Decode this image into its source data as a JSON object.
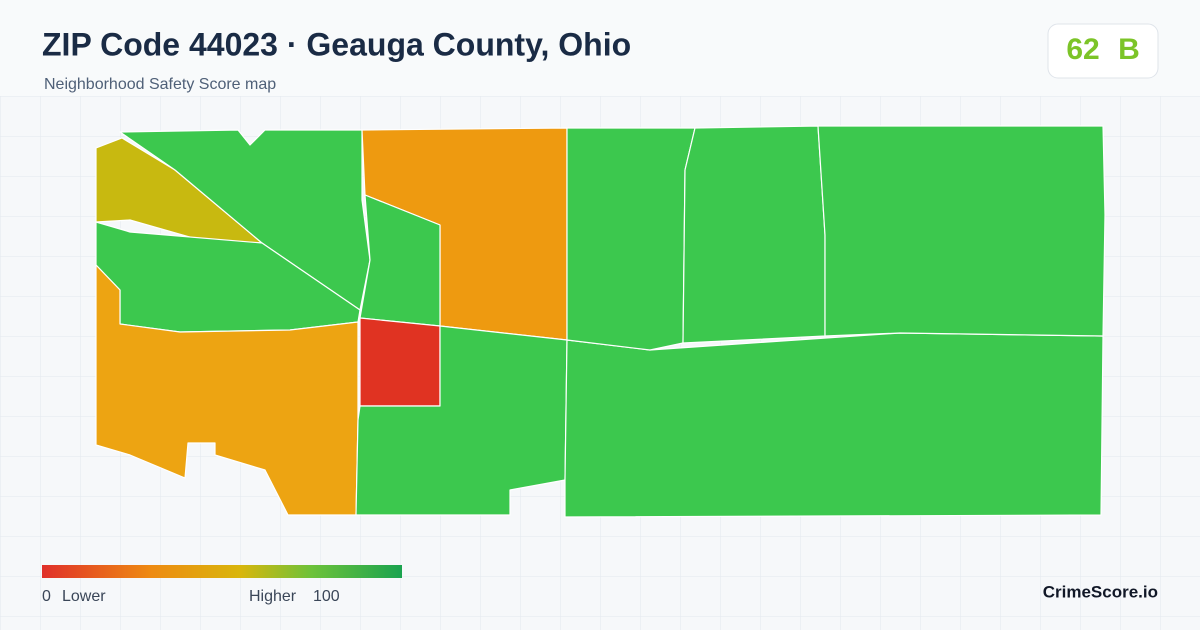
{
  "header": {
    "title": "ZIP Code 44023 · Geauga County, Ohio",
    "subtitle": "Neighborhood Safety Score map"
  },
  "score": {
    "value": "62",
    "grade": "B"
  },
  "legend": {
    "min": "0",
    "min_label": "Lower",
    "max_label": "Higher",
    "max": "100"
  },
  "brand": "CrimeScore.io"
}
